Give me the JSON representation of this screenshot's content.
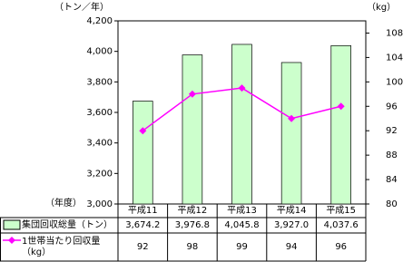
{
  "chart_data": {
    "type": "bar_line",
    "y_axis_label": "（トン／年）",
    "y2_axis_label": "（kg）",
    "x_axis_label": "（年度）",
    "categories": [
      "平成11",
      "平成12",
      "平成13",
      "平成14",
      "平成15"
    ],
    "series": [
      {
        "name": "集団回収総量（トン）",
        "type": "bar",
        "color": "#ccffcc",
        "values": [
          3674.2,
          3976.8,
          4045.8,
          3927.0,
          4037.6
        ],
        "value_labels": [
          "3,674.2",
          "3,976.8",
          "4,045.8",
          "3,927.0",
          "4,037.6"
        ]
      },
      {
        "name": "1世帯当たり回収量（kg）",
        "type": "line",
        "axis": "y2",
        "color": "#ff00ff",
        "values": [
          92,
          98,
          99,
          94,
          96
        ]
      }
    ],
    "ylim": [
      3000,
      4200
    ],
    "yticks": [
      {
        "value": 3000,
        "label": "3,000"
      },
      {
        "value": 3200,
        "label": "3,200"
      },
      {
        "value": 3400,
        "label": "3,400"
      },
      {
        "value": 3600,
        "label": "3,600"
      },
      {
        "value": 3800,
        "label": "3,800"
      },
      {
        "value": 4000,
        "label": "4,000"
      },
      {
        "value": 4200,
        "label": "4,200"
      }
    ],
    "y2lim": [
      80,
      110
    ],
    "y2ticks": [
      80,
      84,
      88,
      92,
      96,
      100,
      104,
      108
    ]
  }
}
